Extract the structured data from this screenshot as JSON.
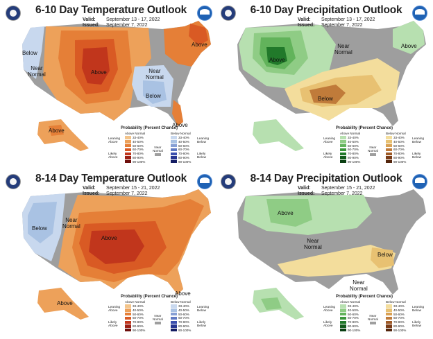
{
  "panels": [
    {
      "title": "6-10 Day Temperature Outlook",
      "valid_label": "Valid:",
      "valid_dates": "September 13 - 17, 2022",
      "issued_label": "Issued:",
      "issued_date": "September 7, 2022",
      "region_labels": [
        "Below",
        "Near\nNormal",
        "Above",
        "Near\nNormal",
        "Below",
        "Above",
        "Above",
        "Above"
      ],
      "kind": "temperature"
    },
    {
      "title": "6-10 Day Precipitation Outlook",
      "valid_label": "Valid:",
      "valid_dates": "September 13 - 17, 2022",
      "issued_label": "Issued:",
      "issued_date": "September 7, 2022",
      "region_labels": [
        "Above",
        "Near\nNormal",
        "Above",
        "Below"
      ],
      "kind": "precipitation"
    },
    {
      "title": "8-14 Day Temperature Outlook",
      "valid_label": "Valid:",
      "valid_dates": "September 15 - 21, 2022",
      "issued_label": "Issued:",
      "issued_date": "September 7, 2022",
      "region_labels": [
        "Below",
        "Near\nNormal",
        "Above",
        "Above",
        "Above"
      ],
      "kind": "temperature"
    },
    {
      "title": "8-14 Day Precipitation Outlook",
      "valid_label": "Valid:",
      "valid_dates": "September 15 - 21, 2022",
      "issued_label": "Issued:",
      "issued_date": "September 7, 2022",
      "region_labels": [
        "Above",
        "Near\nNormal",
        "Below",
        "Near\nNormal"
      ],
      "kind": "precipitation"
    }
  ],
  "legend": {
    "title": "Probability (Percent Chance)",
    "temperature": {
      "above_header": "Above Normal",
      "below_header": "Below Normal",
      "left_top": "Leaning\nAbove",
      "left_bottom": "Likely\nAbove",
      "right_top": "Leaning\nBelow",
      "right_bottom": "Likely\nBelow",
      "ranges": [
        "33-40%",
        "40-50%",
        "50-60%",
        "60-70%",
        "70-80%",
        "80-90%",
        "90-100%"
      ],
      "above_colors": [
        "#f3c48a",
        "#eda15a",
        "#e57f37",
        "#d95a24",
        "#c1361c",
        "#9c1f14",
        "#6e0f0c"
      ],
      "below_colors": [
        "#c8d8ee",
        "#a9c2e3",
        "#869fd4",
        "#5f79c2",
        "#3b4fae",
        "#263591",
        "#141d63"
      ]
    },
    "precipitation": {
      "above_header": "Above Normal",
      "below_header": "Below Normal",
      "left_top": "Leaning\nAbove",
      "left_bottom": "Likely\nAbove",
      "right_top": "Leaning\nBelow",
      "right_bottom": "Likely\nBelow",
      "ranges": [
        "33-40%",
        "40-50%",
        "50-60%",
        "60-70%",
        "70-80%",
        "80-90%",
        "90-100%"
      ],
      "above_colors": [
        "#b7e0b0",
        "#8fcc85",
        "#62b35b",
        "#3a963a",
        "#21792a",
        "#135c1c",
        "#0a3f12"
      ],
      "below_colors": [
        "#f3dd9c",
        "#e8c172",
        "#d9a154",
        "#c07b3a",
        "#9e5a27",
        "#7a3c17",
        "#53250c"
      ]
    },
    "near_normal": "Near\nNormal"
  }
}
